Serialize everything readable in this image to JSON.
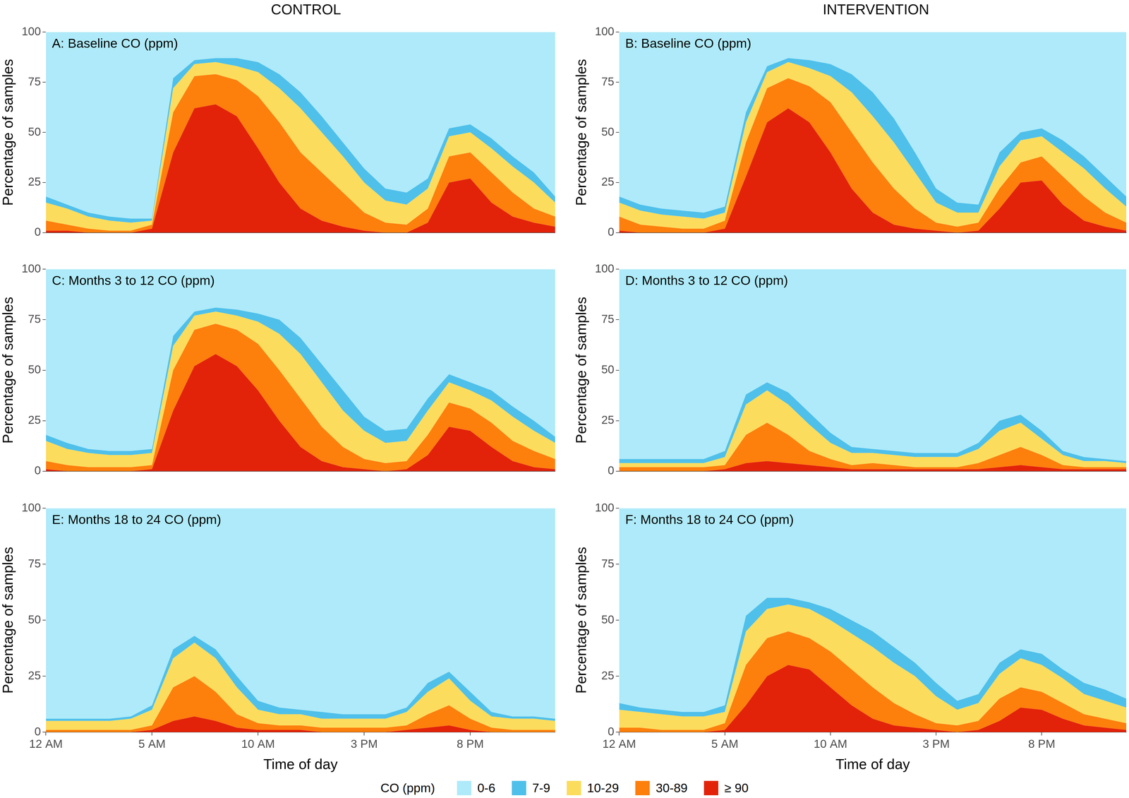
{
  "columns": [
    "CONTROL",
    "INTERVENTION"
  ],
  "legend_title": "CO (ppm)",
  "chart_data": [
    {
      "type": "line",
      "stacked": true,
      "title": "A: Baseline CO (ppm)",
      "y_label": "Percentage of samples",
      "tick_labels": "y",
      "x": [
        0,
        1,
        2,
        3,
        4,
        5,
        6,
        7,
        8,
        9,
        10,
        11,
        12,
        13,
        14,
        15,
        16,
        17,
        18,
        19,
        20,
        21,
        22,
        23,
        24
      ],
      "xlim": [
        0,
        24
      ],
      "ylim": [
        0,
        100
      ],
      "yticks": [
        0,
        25,
        50,
        75,
        100
      ],
      "series": [
        {
          "name": "0-6",
          "color": "#aeeaf9",
          "values": [
            82,
            86,
            90,
            92,
            93,
            93,
            23,
            14,
            13,
            13,
            15,
            21,
            30,
            42,
            55,
            68,
            78,
            80,
            73,
            48,
            46,
            53,
            62,
            70,
            82
          ]
        },
        {
          "name": "7-9",
          "color": "#4fc0ea",
          "values": [
            3,
            2,
            2,
            2,
            2,
            1,
            5,
            2,
            2,
            4,
            5,
            7,
            8,
            8,
            7,
            7,
            6,
            6,
            5,
            4,
            4,
            5,
            5,
            5,
            3
          ]
        },
        {
          "name": "10-29",
          "color": "#fcdc5c",
          "values": [
            9,
            8,
            6,
            5,
            4,
            2,
            12,
            6,
            6,
            7,
            12,
            17,
            22,
            20,
            18,
            15,
            11,
            10,
            10,
            10,
            10,
            12,
            13,
            13,
            7
          ]
        },
        {
          "name": "30-89",
          "color": "#fd7f0c",
          "values": [
            5,
            3,
            2,
            1,
            1,
            2,
            20,
            16,
            15,
            18,
            26,
            30,
            28,
            24,
            17,
            9,
            5,
            4,
            7,
            13,
            13,
            15,
            12,
            7,
            5
          ]
        },
        {
          "name": "≥ 90",
          "color": "#e2230a",
          "values": [
            1,
            1,
            0,
            0,
            0,
            2,
            40,
            62,
            64,
            58,
            42,
            25,
            12,
            6,
            3,
            1,
            0,
            0,
            5,
            25,
            27,
            15,
            8,
            5,
            3
          ]
        }
      ]
    },
    {
      "type": "line",
      "stacked": true,
      "title": "B: Baseline CO (ppm)",
      "y_label": "Percentage of samples",
      "tick_labels": "y",
      "x": [
        0,
        1,
        2,
        3,
        4,
        5,
        6,
        7,
        8,
        9,
        10,
        11,
        12,
        13,
        14,
        15,
        16,
        17,
        18,
        19,
        20,
        21,
        22,
        23,
        24
      ],
      "xlim": [
        0,
        24
      ],
      "ylim": [
        0,
        100
      ],
      "yticks": [
        0,
        25,
        50,
        75,
        100
      ],
      "series": [
        {
          "name": "0-6",
          "color": "#aeeaf9",
          "values": [
            82,
            86,
            88,
            89,
            90,
            87,
            40,
            17,
            13,
            14,
            16,
            21,
            30,
            43,
            60,
            78,
            85,
            86,
            60,
            50,
            48,
            54,
            62,
            72,
            82
          ]
        },
        {
          "name": "7-9",
          "color": "#4fc0ea",
          "values": [
            3,
            3,
            3,
            3,
            3,
            3,
            5,
            3,
            2,
            4,
            6,
            9,
            12,
            12,
            10,
            7,
            5,
            4,
            7,
            4,
            4,
            6,
            6,
            6,
            5
          ]
        },
        {
          "name": "10-29",
          "color": "#fcdc5c",
          "values": [
            7,
            7,
            6,
            6,
            5,
            4,
            10,
            8,
            8,
            9,
            13,
            20,
            23,
            23,
            18,
            10,
            7,
            5,
            11,
            11,
            10,
            12,
            14,
            12,
            8
          ]
        },
        {
          "name": "30-89",
          "color": "#fd7f0c",
          "values": [
            7,
            4,
            3,
            2,
            2,
            4,
            17,
            17,
            15,
            18,
            25,
            28,
            25,
            18,
            10,
            4,
            3,
            4,
            10,
            10,
            12,
            14,
            12,
            7,
            4
          ]
        },
        {
          "name": "≥ 90",
          "color": "#e2230a",
          "values": [
            1,
            0,
            0,
            0,
            0,
            2,
            28,
            55,
            62,
            55,
            40,
            22,
            10,
            4,
            2,
            1,
            0,
            1,
            12,
            25,
            26,
            14,
            6,
            3,
            1
          ]
        }
      ]
    },
    {
      "type": "line",
      "stacked": true,
      "title": "C: Months 3 to 12 CO (ppm)",
      "y_label": "Percentage of samples",
      "tick_labels": "y",
      "x": [
        0,
        1,
        2,
        3,
        4,
        5,
        6,
        7,
        8,
        9,
        10,
        11,
        12,
        13,
        14,
        15,
        16,
        17,
        18,
        19,
        20,
        21,
        22,
        23,
        24
      ],
      "xlim": [
        0,
        24
      ],
      "ylim": [
        0,
        100
      ],
      "yticks": [
        0,
        25,
        50,
        75,
        100
      ],
      "series": [
        {
          "name": "0-6",
          "color": "#aeeaf9",
          "values": [
            82,
            86,
            89,
            90,
            90,
            89,
            33,
            21,
            19,
            20,
            22,
            25,
            34,
            47,
            60,
            73,
            80,
            79,
            64,
            52,
            56,
            60,
            68,
            75,
            83
          ]
        },
        {
          "name": "7-9",
          "color": "#4fc0ea",
          "values": [
            3,
            3,
            2,
            2,
            2,
            2,
            5,
            2,
            2,
            3,
            4,
            7,
            8,
            9,
            10,
            7,
            6,
            6,
            6,
            4,
            4,
            5,
            5,
            5,
            3
          ]
        },
        {
          "name": "10-29",
          "color": "#fcdc5c",
          "values": [
            10,
            8,
            7,
            6,
            6,
            6,
            12,
            7,
            6,
            7,
            11,
            18,
            22,
            22,
            18,
            14,
            10,
            10,
            12,
            10,
            9,
            11,
            12,
            10,
            8
          ]
        },
        {
          "name": "30-89",
          "color": "#fd7f0c",
          "values": [
            4,
            3,
            2,
            2,
            2,
            2,
            20,
            18,
            15,
            18,
            23,
            25,
            24,
            17,
            10,
            5,
            4,
            4,
            10,
            12,
            11,
            12,
            10,
            8,
            5
          ]
        },
        {
          "name": "≥ 90",
          "color": "#e2230a",
          "values": [
            1,
            0,
            0,
            0,
            0,
            1,
            30,
            52,
            58,
            52,
            40,
            25,
            12,
            5,
            2,
            1,
            0,
            1,
            8,
            22,
            20,
            12,
            5,
            2,
            1
          ]
        }
      ]
    },
    {
      "type": "line",
      "stacked": true,
      "title": "D: Months 3 to 12 CO (ppm)",
      "y_label": "Percentage of samples",
      "tick_labels": "y",
      "x": [
        0,
        1,
        2,
        3,
        4,
        5,
        6,
        7,
        8,
        9,
        10,
        11,
        12,
        13,
        14,
        15,
        16,
        17,
        18,
        19,
        20,
        21,
        22,
        23,
        24
      ],
      "xlim": [
        0,
        24
      ],
      "ylim": [
        0,
        100
      ],
      "yticks": [
        0,
        25,
        50,
        75,
        100
      ],
      "series": [
        {
          "name": "0-6",
          "color": "#aeeaf9",
          "values": [
            94,
            94,
            94,
            94,
            94,
            90,
            62,
            56,
            61,
            71,
            81,
            88,
            89,
            90,
            91,
            91,
            91,
            86,
            75,
            72,
            80,
            90,
            93,
            94,
            95
          ]
        },
        {
          "name": "7-9",
          "color": "#4fc0ea",
          "values": [
            2,
            2,
            2,
            2,
            2,
            3,
            5,
            4,
            6,
            6,
            5,
            3,
            2,
            2,
            2,
            2,
            2,
            3,
            5,
            4,
            4,
            2,
            2,
            1,
            1
          ]
        },
        {
          "name": "10-29",
          "color": "#fcdc5c",
          "values": [
            2,
            2,
            2,
            2,
            2,
            4,
            15,
            16,
            15,
            13,
            8,
            6,
            5,
            5,
            5,
            5,
            5,
            7,
            12,
            12,
            8,
            5,
            3,
            3,
            2
          ]
        },
        {
          "name": "30-89",
          "color": "#fd7f0c",
          "values": [
            2,
            2,
            2,
            2,
            2,
            2,
            14,
            19,
            14,
            7,
            4,
            2,
            3,
            2,
            1,
            1,
            1,
            3,
            6,
            9,
            6,
            2,
            1,
            1,
            1
          ]
        },
        {
          "name": "≥ 90",
          "color": "#e2230a",
          "values": [
            0,
            0,
            0,
            0,
            0,
            1,
            4,
            5,
            4,
            3,
            2,
            1,
            1,
            1,
            1,
            1,
            1,
            1,
            2,
            3,
            2,
            1,
            1,
            1,
            1
          ]
        }
      ]
    },
    {
      "type": "line",
      "stacked": true,
      "title": "E: Months 18 to 24 CO (ppm)",
      "y_label": "Percentage of samples",
      "x_label": "Time of day",
      "x": [
        0,
        1,
        2,
        3,
        4,
        5,
        6,
        7,
        8,
        9,
        10,
        11,
        12,
        13,
        14,
        15,
        16,
        17,
        18,
        19,
        20,
        21,
        22,
        23,
        24
      ],
      "xlim": [
        0,
        24
      ],
      "ylim": [
        0,
        100
      ],
      "yticks": [
        0,
        25,
        50,
        75,
        100
      ],
      "xticks": [
        {
          "value": 0,
          "label": "12 AM"
        },
        {
          "value": 5,
          "label": "5 AM"
        },
        {
          "value": 10,
          "label": "10 AM"
        },
        {
          "value": 15,
          "label": "3 PM"
        },
        {
          "value": 20,
          "label": "8 PM"
        }
      ],
      "series": [
        {
          "name": "0-6",
          "color": "#aeeaf9",
          "values": [
            94,
            94,
            94,
            94,
            93,
            88,
            63,
            57,
            63,
            75,
            86,
            89,
            90,
            91,
            92,
            92,
            92,
            89,
            78,
            73,
            82,
            91,
            93,
            93,
            94
          ]
        },
        {
          "name": "7-9",
          "color": "#4fc0ea",
          "values": [
            1,
            1,
            1,
            1,
            1,
            2,
            4,
            3,
            4,
            5,
            4,
            3,
            2,
            3,
            2,
            2,
            2,
            2,
            4,
            3,
            4,
            2,
            1,
            1,
            1
          ]
        },
        {
          "name": "10-29",
          "color": "#fcdc5c",
          "values": [
            4,
            4,
            4,
            4,
            5,
            7,
            13,
            15,
            15,
            12,
            6,
            5,
            5,
            4,
            4,
            4,
            4,
            6,
            10,
            12,
            8,
            5,
            5,
            5,
            4
          ]
        },
        {
          "name": "30-89",
          "color": "#fd7f0c",
          "values": [
            1,
            1,
            1,
            1,
            1,
            2,
            15,
            18,
            13,
            6,
            3,
            2,
            2,
            2,
            2,
            2,
            2,
            2,
            6,
            9,
            5,
            2,
            1,
            1,
            1
          ]
        },
        {
          "name": "≥ 90",
          "color": "#e2230a",
          "values": [
            0,
            0,
            0,
            0,
            0,
            1,
            5,
            7,
            5,
            2,
            1,
            1,
            1,
            0,
            0,
            0,
            0,
            1,
            2,
            3,
            1,
            0,
            0,
            0,
            0
          ]
        }
      ]
    },
    {
      "type": "line",
      "stacked": true,
      "title": "F: Months 18 to 24 CO (ppm)",
      "y_label": "Percentage of samples",
      "x_label": "Time of day",
      "x": [
        0,
        1,
        2,
        3,
        4,
        5,
        6,
        7,
        8,
        9,
        10,
        11,
        12,
        13,
        14,
        15,
        16,
        17,
        18,
        19,
        20,
        21,
        22,
        23,
        24
      ],
      "xlim": [
        0,
        24
      ],
      "ylim": [
        0,
        100
      ],
      "yticks": [
        0,
        25,
        50,
        75,
        100
      ],
      "xticks": [
        {
          "value": 0,
          "label": "12 AM"
        },
        {
          "value": 5,
          "label": "5 AM"
        },
        {
          "value": 10,
          "label": "10 AM"
        },
        {
          "value": 15,
          "label": "3 PM"
        },
        {
          "value": 20,
          "label": "8 PM"
        }
      ],
      "series": [
        {
          "name": "0-6",
          "color": "#aeeaf9",
          "values": [
            87,
            89,
            90,
            91,
            91,
            88,
            48,
            40,
            40,
            42,
            45,
            50,
            55,
            62,
            69,
            78,
            86,
            83,
            69,
            63,
            65,
            72,
            78,
            81,
            85
          ]
        },
        {
          "name": "7-9",
          "color": "#4fc0ea",
          "values": [
            3,
            2,
            2,
            2,
            2,
            3,
            7,
            5,
            3,
            3,
            5,
            6,
            7,
            7,
            6,
            6,
            4,
            4,
            5,
            4,
            5,
            4,
            5,
            5,
            4
          ]
        },
        {
          "name": "10-29",
          "color": "#fcdc5c",
          "values": [
            8,
            7,
            7,
            6,
            6,
            5,
            15,
            13,
            12,
            13,
            14,
            16,
            18,
            18,
            17,
            12,
            7,
            8,
            11,
            13,
            12,
            11,
            9,
            8,
            7
          ]
        },
        {
          "name": "30-89",
          "color": "#fd7f0c",
          "values": [
            2,
            2,
            1,
            1,
            1,
            3,
            18,
            17,
            15,
            14,
            16,
            16,
            14,
            10,
            6,
            3,
            3,
            4,
            10,
            9,
            8,
            7,
            5,
            4,
            3
          ]
        },
        {
          "name": "≥ 90",
          "color": "#e2230a",
          "values": [
            0,
            0,
            0,
            0,
            0,
            1,
            12,
            25,
            30,
            28,
            20,
            12,
            6,
            3,
            2,
            1,
            0,
            1,
            5,
            11,
            10,
            6,
            3,
            2,
            1
          ]
        }
      ]
    }
  ]
}
